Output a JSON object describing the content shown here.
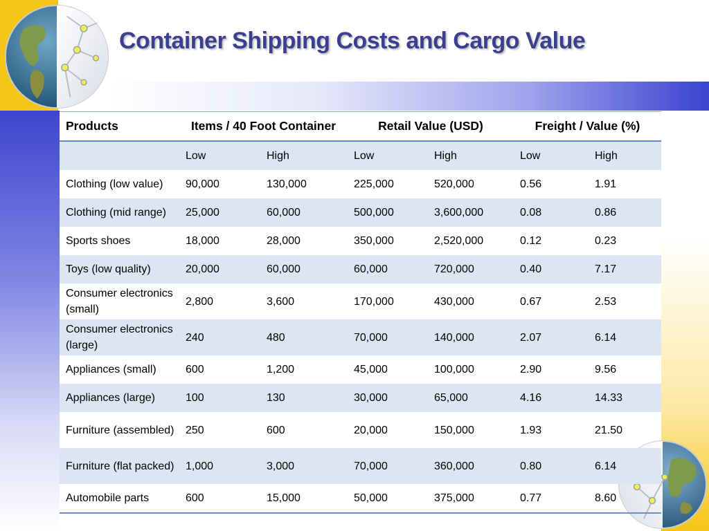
{
  "slide": {
    "title": "Container Shipping Costs and Cargo Value"
  },
  "table": {
    "header": {
      "products": "Products",
      "items": "Items / 40 Foot Container",
      "retail": "Retail Value (USD)",
      "freight": "Freight / Value (%)"
    },
    "subheader": [
      "",
      "Low",
      "High",
      "Low",
      "High",
      "Low",
      "High"
    ],
    "rows": [
      [
        "Clothing (low value)",
        "90,000",
        "130,000",
        "225,000",
        "520,000",
        "0.56",
        "1.91"
      ],
      [
        "Clothing (mid range)",
        "25,000",
        "60,000",
        "500,000",
        "3,600,000",
        "0.08",
        "0.86"
      ],
      [
        "Sports shoes",
        "18,000",
        "28,000",
        "350,000",
        "2,520,000",
        "0.12",
        "0.23"
      ],
      [
        "Toys (low quality)",
        "20,000",
        "60,000",
        "60,000",
        "720,000",
        "0.40",
        "7.17"
      ],
      [
        "Consumer electronics (small)",
        "2,800",
        "3,600",
        "170,000",
        "430,000",
        "0.67",
        "2.53"
      ],
      [
        "Consumer electronics (large)",
        "240",
        "480",
        "70,000",
        "140,000",
        "2.07",
        "6.14"
      ],
      [
        "Appliances (small)",
        "600",
        "1,200",
        "45,000",
        "100,000",
        "2.90",
        "9.56"
      ],
      [
        "Appliances (large)",
        "100",
        "130",
        "30,000",
        "65,000",
        "4.16",
        "14.33"
      ],
      [
        "Furniture (assembled)",
        "250",
        "600",
        "20,000",
        "150,000",
        "1.93",
        "21.50"
      ],
      [
        "Furniture (flat packed)",
        "1,000",
        "3,000",
        "70,000",
        "360,000",
        "0.80",
        "6.14"
      ],
      [
        "Automobile parts",
        "600",
        "15,000",
        "50,000",
        "375,000",
        "0.77",
        "8.60"
      ]
    ]
  },
  "colors": {
    "accent_blue": "#3b43d0",
    "accent_yellow": "#f5c518",
    "row_band": "#dce6f2",
    "title": "#3a3f8f"
  },
  "icons": {
    "top_left": "globe-network-icon",
    "bottom_right": "globe-network-icon"
  }
}
